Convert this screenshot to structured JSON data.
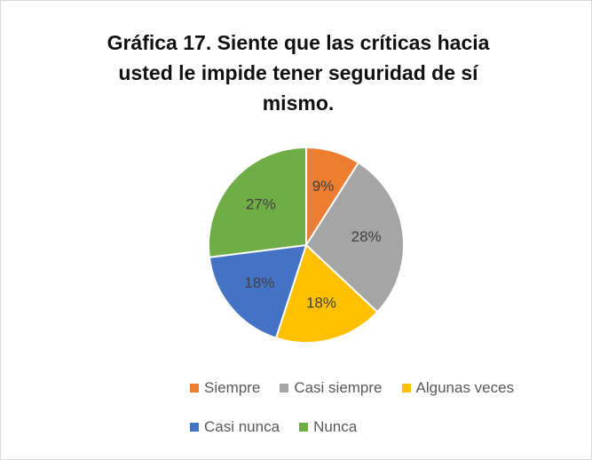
{
  "chart_data": {
    "type": "pie",
    "title": "Gráfica 17. Siente que las críticas hacia usted le impide tener seguridad de sí mismo.",
    "categories": [
      "Siempre",
      "Casi siempre",
      "Algunas veces",
      "Casi nunca",
      "Nunca"
    ],
    "values": [
      9,
      28,
      18,
      18,
      27
    ],
    "value_labels": [
      "9%",
      "28%",
      "18%",
      "18%",
      "27%"
    ],
    "colors": [
      "#ed7d31",
      "#a5a5a5",
      "#ffc000",
      "#4472c4",
      "#70ad47"
    ],
    "legend": "bottom"
  }
}
